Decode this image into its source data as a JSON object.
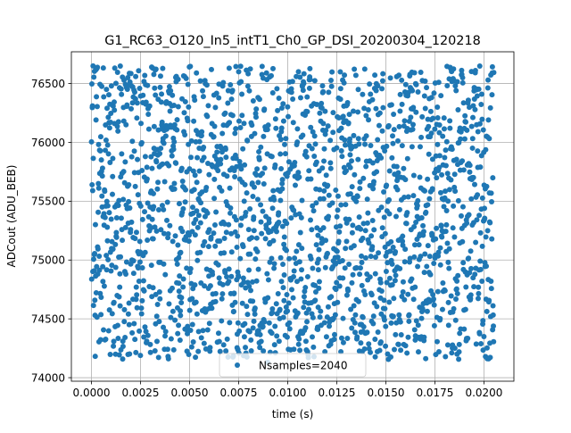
{
  "chart_data": {
    "type": "scatter",
    "title": "G1_RC63_O120_In5_intT1_Ch0_GP_DSI_20200304_120218",
    "xlabel": "time (s)",
    "ylabel": "ADCout (ADU_BEB)",
    "xlim": [
      -0.001025,
      0.021525
    ],
    "ylim": [
      73970,
      76770
    ],
    "xticks": [
      0.0,
      0.0025,
      0.005,
      0.0075,
      0.01,
      0.0125,
      0.015,
      0.0175,
      0.02
    ],
    "xtick_labels": [
      "0.0000",
      "0.0025",
      "0.0050",
      "0.0075",
      "0.0100",
      "0.0125",
      "0.0150",
      "0.0175",
      "0.0200"
    ],
    "yticks": [
      74000,
      74500,
      75000,
      75500,
      76000,
      76500
    ],
    "ytick_labels": [
      "74000",
      "74500",
      "75000",
      "75500",
      "76000",
      "76500"
    ],
    "grid": true,
    "legend_position": "lower center",
    "series": [
      {
        "name": "Nsamples=2040",
        "color": "#1f77b4",
        "marker": "circle",
        "n_points": 2040,
        "x_range": [
          0.0,
          0.0205
        ],
        "y_range": [
          74100,
          76700
        ],
        "sampling": "uniform in time; ADC values spread roughly uniformly between ~74150 and ~76650"
      }
    ]
  }
}
